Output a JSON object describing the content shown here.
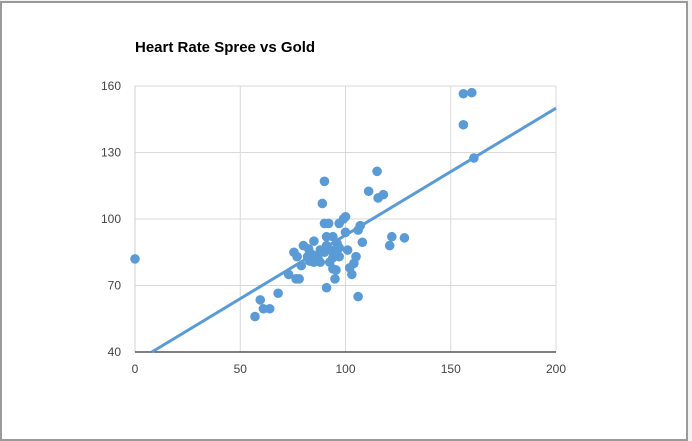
{
  "chart_data": {
    "type": "scatter",
    "title": "Heart Rate Spree vs Gold",
    "xlabel": "",
    "ylabel": "",
    "xlim": [
      0,
      200
    ],
    "ylim": [
      40,
      160
    ],
    "xticks": [
      "0",
      "50",
      "100",
      "150",
      "200"
    ],
    "yticks": [
      "40",
      "70",
      "100",
      "130",
      "160"
    ],
    "grid": true,
    "legend": "none",
    "point_color": "#5b9bd5",
    "trendline": {
      "type": "linear",
      "slope": 0.573,
      "intercept": 35.4
    },
    "points": [
      [
        0,
        82
      ],
      [
        57,
        56
      ],
      [
        59.5,
        63.5
      ],
      [
        61,
        59.5
      ],
      [
        64,
        59.5
      ],
      [
        68,
        66.5
      ],
      [
        73,
        75
      ],
      [
        76.5,
        73
      ],
      [
        78,
        73
      ],
      [
        75.5,
        85
      ],
      [
        79,
        79
      ],
      [
        80,
        88
      ],
      [
        77,
        83
      ],
      [
        82.5,
        86.5
      ],
      [
        85,
        90
      ],
      [
        89,
        107
      ],
      [
        90,
        117
      ],
      [
        91,
        69
      ],
      [
        90,
        98
      ],
      [
        92,
        98
      ],
      [
        91,
        92
      ],
      [
        94,
        92
      ],
      [
        96,
        89
      ],
      [
        97,
        98
      ],
      [
        99,
        100
      ],
      [
        100,
        101
      ],
      [
        100,
        94
      ],
      [
        95.5,
        77
      ],
      [
        94,
        77.5
      ],
      [
        95,
        73
      ],
      [
        101,
        86
      ],
      [
        102,
        78
      ],
      [
        103,
        75
      ],
      [
        104,
        80
      ],
      [
        105,
        83
      ],
      [
        106,
        65
      ],
      [
        107,
        97
      ],
      [
        106,
        95
      ],
      [
        108,
        89.5
      ],
      [
        111,
        112.5
      ],
      [
        115,
        121.5
      ],
      [
        115.5,
        109.5
      ],
      [
        118,
        111
      ],
      [
        121,
        88
      ],
      [
        122,
        92
      ],
      [
        128,
        91.5
      ],
      [
        156,
        156.5
      ],
      [
        160,
        157
      ],
      [
        156,
        142.5
      ],
      [
        161,
        127.5
      ],
      [
        84,
        84
      ],
      [
        87,
        82
      ],
      [
        88,
        86
      ],
      [
        90,
        85
      ],
      [
        93,
        86
      ],
      [
        85,
        80.5
      ],
      [
        92.5,
        80.5
      ],
      [
        97,
        83
      ],
      [
        88,
        80.5
      ],
      [
        82,
        83
      ],
      [
        94,
        82.5
      ],
      [
        97,
        87
      ],
      [
        86,
        83
      ],
      [
        83,
        81
      ],
      [
        91,
        88
      ],
      [
        96,
        84
      ]
    ]
  }
}
